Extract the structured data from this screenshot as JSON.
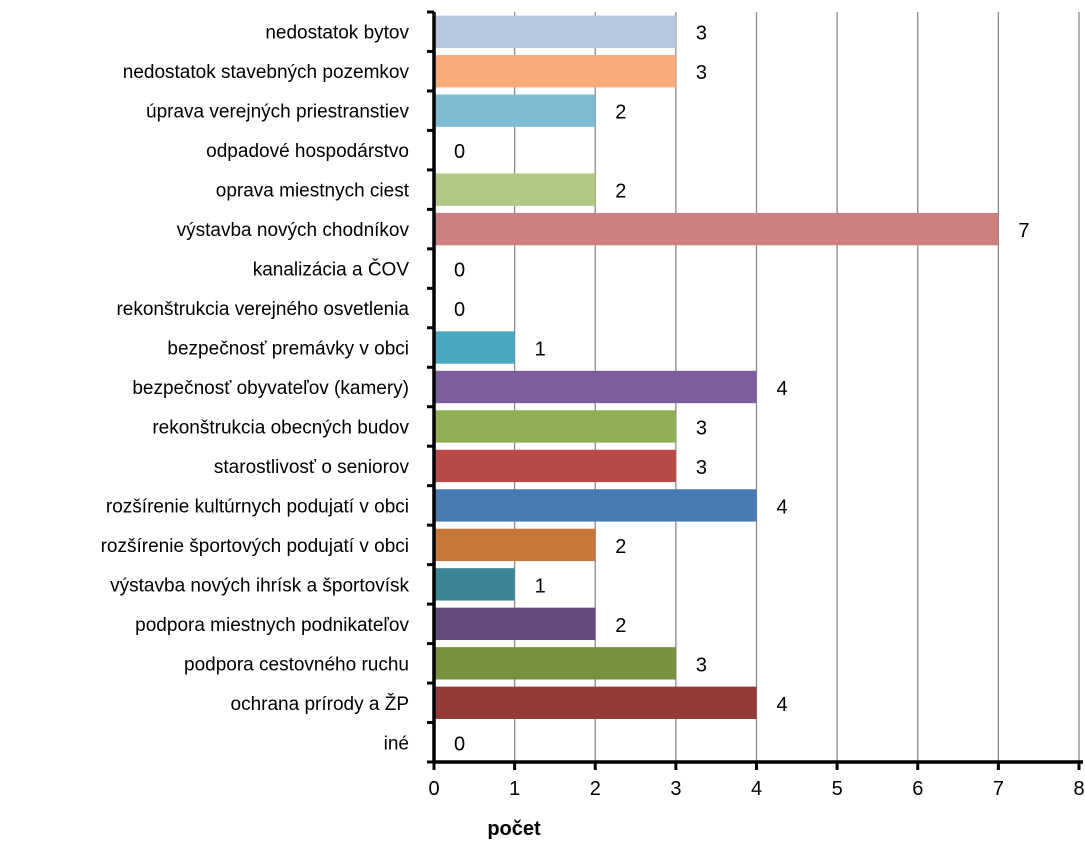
{
  "chart_data": {
    "type": "bar",
    "orientation": "horizontal",
    "title": "",
    "xlabel": "počet",
    "ylabel": "",
    "xlim": [
      0,
      8
    ],
    "x_ticks": [
      0,
      1,
      2,
      3,
      4,
      5,
      6,
      7,
      8
    ],
    "grid": true,
    "categories": [
      "nedostatok bytov",
      "nedostatok stavebných pozemkov",
      "úprava verejných priestranstiev",
      "odpadové hospodárstvo",
      "oprava miestnych ciest",
      "výstavba nových chodníkov",
      "kanalizácia a ČOV",
      "rekonštrukcia verejného osvetlenia",
      "bezpečnosť premávky v obci",
      "bezpečnosť obyvateľov (kamery)",
      "rekonštrukcia obecných budov",
      "starostlivosť o seniorov",
      "rozšírenie kultúrnych podujatí v obci",
      "rozšírenie športových podujatí v obci",
      "výstavba nových ihrísk a športovísk",
      "podpora miestnych podnikateľov",
      "podpora cestovného ruchu",
      "ochrana prírody a ŽP",
      "iné"
    ],
    "values": [
      3,
      3,
      2,
      0,
      2,
      7,
      0,
      0,
      1,
      4,
      3,
      3,
      4,
      2,
      1,
      2,
      3,
      4,
      0
    ],
    "data_labels": [
      "3",
      "3",
      "2",
      "0",
      "2",
      "7",
      "0",
      "0",
      "1",
      "4",
      "3",
      "3",
      "4",
      "2",
      "1",
      "2",
      "3",
      "4",
      "0"
    ],
    "colors": [
      "#b8c7e0",
      "#f9ab7a",
      "#7fbcd2",
      "#9fc5d7",
      "#b0ca86",
      "#cb7f7e",
      "#9f93c1",
      "#8ccbd9",
      "#4aa7c0",
      "#7b5e9b",
      "#8fb052",
      "#b94a48",
      "#4a7ab4",
      "#c8773a",
      "#3a8698",
      "#654a7e",
      "#76923c",
      "#943b38",
      "#4f81bd"
    ]
  }
}
